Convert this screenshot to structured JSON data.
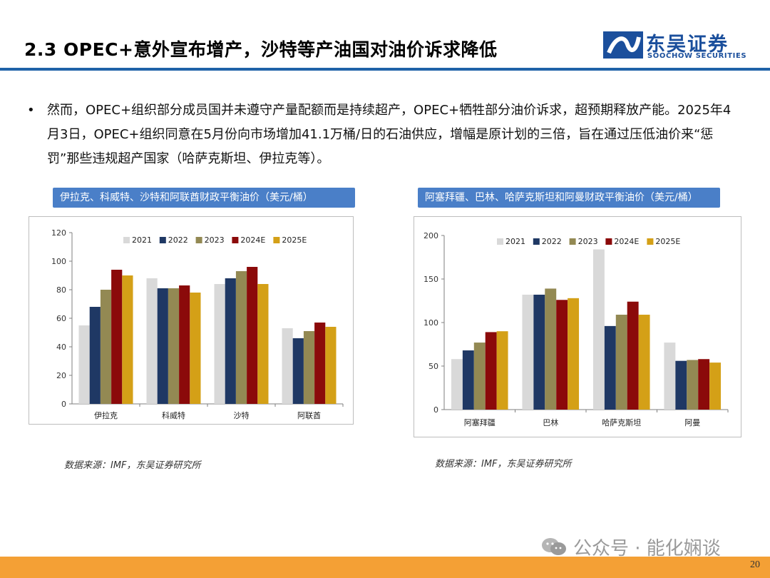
{
  "header": {
    "title": "2.3 OPEC+意外宣布增产，沙特等产油国对油价诉求降低",
    "logo_cn": "东吴证券",
    "logo_en": "SOOCHOW SECURITIES"
  },
  "bullet": {
    "symbol": "•",
    "text": "然而，OPEC+组织部分成员国并未遵守产量配额而是持续超产，OPEC+牺牲部分油价诉求，超预期释放产能。2025年4月3日，OPEC+组织同意在5月份向市场增加41.1万桶/日的石油供应，增幅是原计划的三倍，旨在通过压低油价来“惩罚”那些违规超产国家（哈萨克斯坦、伊拉克等）。"
  },
  "footer": {
    "page_number": "20",
    "watermark": "公众号 · 能化娴谈"
  },
  "chart_data": [
    {
      "type": "bar",
      "title": "伊拉克、科威特、沙特和阿联酋财政平衡油价（美元/桶）",
      "categories": [
        "伊拉克",
        "科威特",
        "沙特",
        "阿联酋"
      ],
      "ylim": [
        0,
        120
      ],
      "yticks": [
        0,
        20,
        40,
        60,
        80,
        100,
        120
      ],
      "legend_position": "top",
      "series": [
        {
          "name": "2021",
          "color": "#d9d9d9",
          "values": [
            55,
            88,
            84,
            53
          ]
        },
        {
          "name": "2022",
          "color": "#1f3864",
          "values": [
            68,
            81,
            88,
            46
          ]
        },
        {
          "name": "2023",
          "color": "#938953",
          "values": [
            80,
            81,
            93,
            51
          ]
        },
        {
          "name": "2024E",
          "color": "#8b0a0a",
          "values": [
            94,
            83,
            96,
            57
          ]
        },
        {
          "name": "2025E",
          "color": "#d4a017",
          "values": [
            90,
            78,
            84,
            54
          ]
        }
      ],
      "source": "数据来源：IMF，东吴证券研究所"
    },
    {
      "type": "bar",
      "title": "阿塞拜疆、巴林、哈萨克斯坦和阿曼财政平衡油价（美元/桶）",
      "categories": [
        "阿塞拜疆",
        "巴林",
        "哈萨克斯坦",
        "阿曼"
      ],
      "ylim": [
        0,
        200
      ],
      "yticks": [
        0,
        50,
        100,
        150,
        200
      ],
      "legend_position": "top",
      "series": [
        {
          "name": "2021",
          "color": "#d9d9d9",
          "values": [
            58,
            132,
            184,
            77
          ]
        },
        {
          "name": "2022",
          "color": "#1f3864",
          "values": [
            68,
            132,
            96,
            56
          ]
        },
        {
          "name": "2023",
          "color": "#938953",
          "values": [
            77,
            139,
            109,
            57
          ]
        },
        {
          "name": "2024E",
          "color": "#8b0a0a",
          "values": [
            89,
            126,
            124,
            58
          ]
        },
        {
          "name": "2025E",
          "color": "#d4a017",
          "values": [
            90,
            128,
            109,
            54
          ]
        }
      ],
      "source": "数据来源：IMF，东吴证券研究所"
    }
  ]
}
